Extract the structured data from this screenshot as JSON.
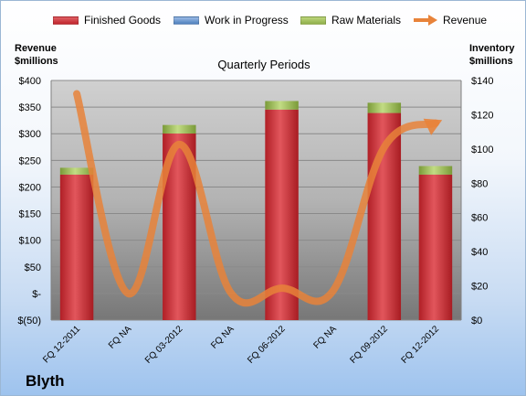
{
  "company": "Blyth",
  "chart_data": {
    "type": "bar",
    "title": "Quarterly Periods",
    "left_axis_title": [
      "Revenue",
      "$millions"
    ],
    "right_axis_title": [
      "Inventory",
      "$millions"
    ],
    "categories": [
      "FQ 12-2011",
      "FQ NA",
      "FQ 03-2012",
      "FQ NA",
      "FQ 06-2012",
      "FQ NA",
      "FQ 09-2012",
      "FQ 12-2012"
    ],
    "left_ticks": [
      "$(50)",
      "$-",
      "$50",
      "$100",
      "$150",
      "$200",
      "$250",
      "$300",
      "$350",
      "$400"
    ],
    "right_ticks": [
      "$0",
      "$20",
      "$40",
      "$60",
      "$80",
      "$100",
      "$120",
      "$140"
    ],
    "left_ylim": [
      -50,
      400
    ],
    "right_ylim": [
      0,
      140
    ],
    "stacked": true,
    "series": [
      {
        "name": "Finished Goods",
        "axis": "right",
        "color": "#c0262d",
        "values": [
          85,
          null,
          109,
          null,
          123,
          null,
          121,
          85
        ]
      },
      {
        "name": "Work in Progress",
        "axis": "right",
        "color": "#4f81bd",
        "values": [
          0,
          null,
          0,
          null,
          0,
          null,
          0,
          0
        ]
      },
      {
        "name": "Raw Materials",
        "axis": "right",
        "color": "#8fb04a",
        "values": [
          4,
          null,
          5,
          null,
          5,
          null,
          6,
          5
        ]
      },
      {
        "name": "Revenue",
        "axis": "left",
        "type": "line",
        "color": "#e8833a",
        "values": [
          375,
          0,
          280,
          2,
          10,
          5,
          275,
          320
        ]
      }
    ]
  }
}
